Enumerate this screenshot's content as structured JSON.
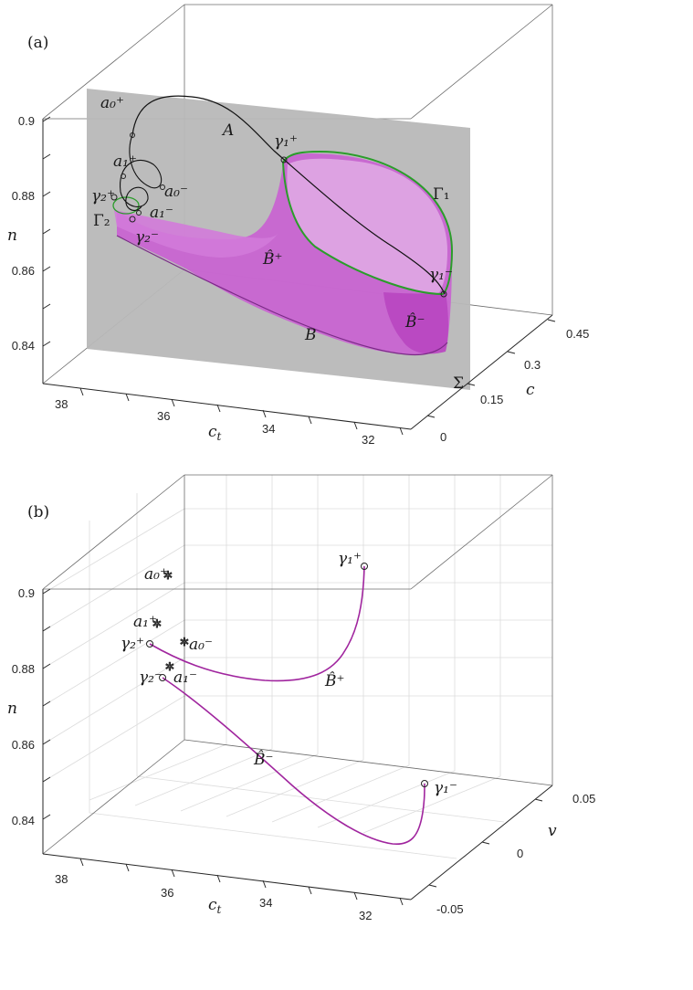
{
  "chart_data": [
    {
      "panel": "(a)",
      "type": "surface3d",
      "xlabel": "c_t",
      "ylabel": "c",
      "zlabel": "n",
      "x_ticks": [
        "38",
        "36",
        "34",
        "32"
      ],
      "y_ticks": [
        "0",
        "0.15",
        "0.3",
        "0.45"
      ],
      "z_ticks": [
        "0.84",
        "0.86",
        "0.88",
        "0.9"
      ],
      "xlim": [
        30.5,
        39
      ],
      "ylim": [
        0,
        0.5
      ],
      "zlim": [
        0.83,
        0.905
      ],
      "labels": {
        "A": "A",
        "B": "B",
        "Sigma": "Σ",
        "Gamma1": "Γ₁",
        "Gamma2": "Γ₂",
        "Bplus": "B̂⁺",
        "Bminus": "B̂⁻",
        "a0p": "a₀⁺",
        "a0m": "a₀⁻",
        "a1p": "a₁⁺",
        "a1m": "a₁⁻",
        "g1p": "γ₁⁺",
        "g1m": "γ₁⁻",
        "g2p": "γ₂⁺",
        "g2m": "γ₂⁻"
      },
      "colors": {
        "surface": "#c15ccb",
        "plane": "#b9b9b9",
        "gamma": "#2a9d2a",
        "curve": "#111111"
      }
    },
    {
      "panel": "(b)",
      "type": "line3d",
      "xlabel": "c_t",
      "ylabel": "v",
      "zlabel": "n",
      "x_ticks": [
        "38",
        "36",
        "34",
        "32"
      ],
      "y_ticks": [
        "-0.05",
        "0",
        "0.05"
      ],
      "z_ticks": [
        "0.84",
        "0.86",
        "0.88",
        "0.9"
      ],
      "xlim": [
        30.5,
        39
      ],
      "ylim": [
        -0.06,
        0.06
      ],
      "zlim": [
        0.83,
        0.905
      ],
      "grid": true,
      "labels": {
        "Bplus": "B̂⁺",
        "Bminus": "B̂⁻",
        "a0p": "a₀⁺",
        "a0m": "a₀⁻",
        "a1p": "a₁⁺",
        "a1m": "a₁⁻",
        "g1p": "γ₁⁺",
        "g1m": "γ₁⁻",
        "g2p": "γ₂⁺",
        "g2m": "γ₂⁻"
      },
      "colors": {
        "curve": "#a0259e"
      }
    }
  ]
}
